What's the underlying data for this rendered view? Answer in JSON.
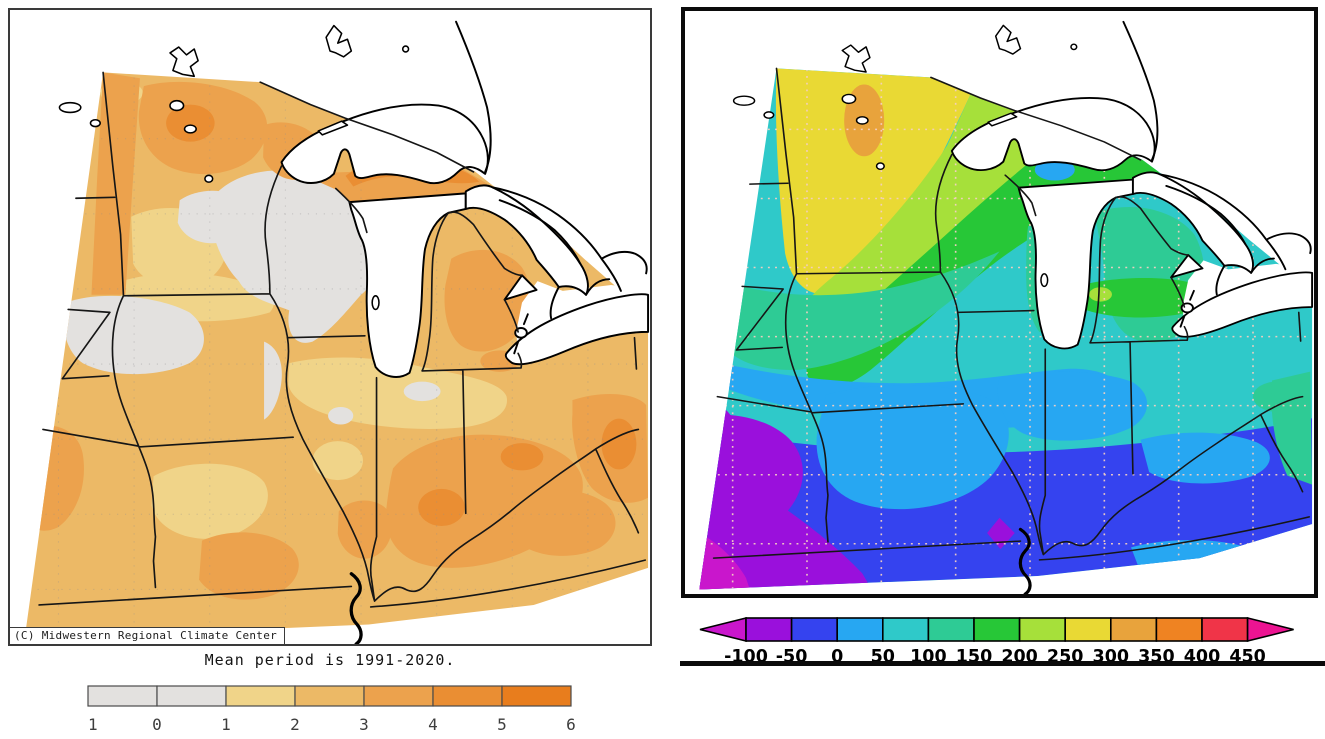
{
  "left_panel": {
    "copyright": "(C) Midwestern Regional Climate Center",
    "caption": "Mean period is 1991-2020.",
    "colorbar": {
      "ticks": [
        "-1",
        "0",
        "1",
        "2",
        "3",
        "4",
        "5",
        "6"
      ],
      "segments": [
        {
          "range": "-1 to 0",
          "color": "#e3e1df"
        },
        {
          "range": "0 to 1",
          "color": "#e3e1df"
        },
        {
          "range": "1 to 2",
          "color": "#f0d489"
        },
        {
          "range": "2 to 3",
          "color": "#ecb966"
        },
        {
          "range": "3 to 4",
          "color": "#eca24d"
        },
        {
          "range": "4 to 5",
          "color": "#ea8e33"
        },
        {
          "range": "5 to 6",
          "color": "#e87d1d"
        }
      ]
    }
  },
  "right_panel": {
    "colorbar": {
      "ticks": [
        "-100",
        "-50",
        "0",
        "50",
        "100",
        "150",
        "200",
        "250",
        "300",
        "350",
        "400",
        "450"
      ],
      "segments": [
        {
          "range": "-100 to -50",
          "color": "#9a10dc"
        },
        {
          "range": "-50 to 0",
          "color": "#3543ef"
        },
        {
          "range": "0 to 50",
          "color": "#27a7f2"
        },
        {
          "range": "50 to 100",
          "color": "#2fc9c9"
        },
        {
          "range": "100 to 150",
          "color": "#2ecb95"
        },
        {
          "range": "150 to 200",
          "color": "#27c737"
        },
        {
          "range": "200 to 250",
          "color": "#a6e03a"
        },
        {
          "range": "250 to 300",
          "color": "#e9d934"
        },
        {
          "range": "300 to 350",
          "color": "#e8a33c"
        },
        {
          "range": "350 to 400",
          "color": "#ef8322"
        },
        {
          "range": "400 to 450",
          "color": "#f03448"
        }
      ],
      "left_arrow_color": "#c916cc",
      "right_arrow_color": "#ec1492"
    }
  }
}
